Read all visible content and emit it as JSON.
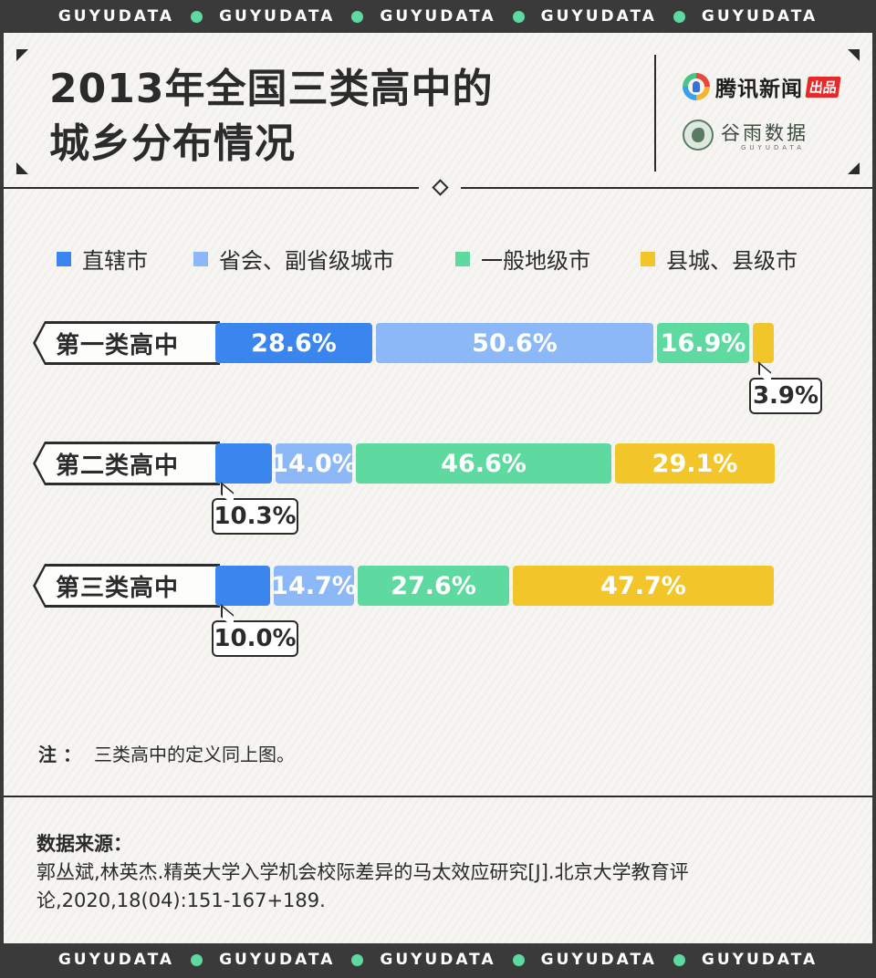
{
  "brand_strip": {
    "words": [
      "GUYUDATA",
      "GUYUDATA",
      "GUYUDATA",
      "GUYUDATA",
      "GUYUDATA"
    ],
    "dot_color": "#5ed9a0"
  },
  "header": {
    "title_line1": "2013年全国三类高中的",
    "title_line2": "城乡分布情况",
    "logo_tencent": "腾讯新闻",
    "logo_tencent_badge": "出品",
    "logo_guyu": "谷雨数据",
    "logo_guyu_sub": "GUYUDATA"
  },
  "chart_data": {
    "type": "bar",
    "stacked": true,
    "orientation": "horizontal",
    "categories": [
      "第一类高中",
      "第二类高中",
      "第三类高中"
    ],
    "series": [
      {
        "name": "直辖市",
        "color": "#3b86ee",
        "values": [
          28.6,
          10.3,
          10.0
        ],
        "labels": [
          "28.6%",
          "10.3%",
          "10.0%"
        ]
      },
      {
        "name": "省会、副省级城市",
        "color": "#8db8f7",
        "values": [
          50.6,
          14.0,
          14.7
        ],
        "labels": [
          "50.6%",
          "14.0%",
          "14.7%"
        ]
      },
      {
        "name": "一般地级市",
        "color": "#5ed9a0",
        "values": [
          16.9,
          46.6,
          27.6
        ],
        "labels": [
          "16.9%",
          "46.6%",
          "27.6%"
        ]
      },
      {
        "name": "县城、县级市",
        "color": "#f2c62b",
        "values": [
          3.9,
          29.1,
          47.7
        ],
        "labels": [
          "3.9%",
          "29.1%",
          "47.7%"
        ]
      }
    ],
    "legend_position": "top-left",
    "grid": false
  },
  "note": {
    "label": "注 ：",
    "text": "三类高中的定义同上图。"
  },
  "source": {
    "title": "数据来源：",
    "text": "郭丛斌,林英杰.精英大学入学机会校际差异的马太效应研究[J].北京大学教育评论,2020,18(04):151-167+189."
  }
}
